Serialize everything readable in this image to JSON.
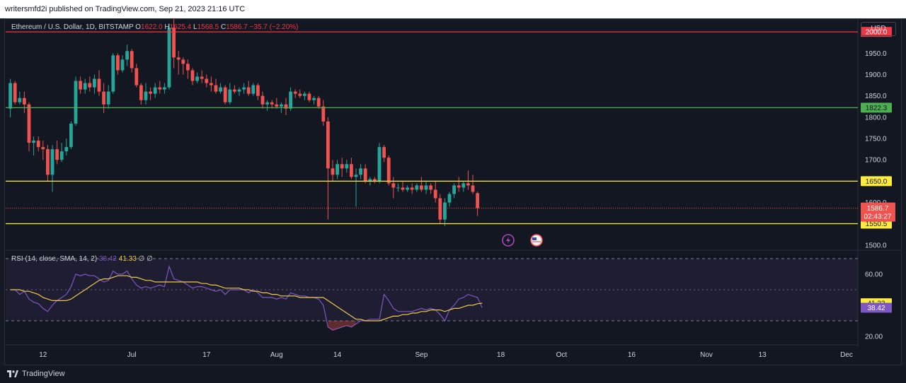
{
  "header": {
    "publisher": "writersmfd2i published on TradingView.com, Sep 21, 2023 21:16 UTC"
  },
  "footer": {
    "brand": "TradingView"
  },
  "currency_button": "USD",
  "legend": {
    "symbol": "Ethereum / U.S. Dollar, 1D, BITSTAMP",
    "o_label": "O",
    "o": "1622.0",
    "h_label": "H",
    "h": "1625.4",
    "l_label": "L",
    "l": "1568.5",
    "c_label": "C",
    "c": "1586.7",
    "change": "−35.7 (−2.20%)"
  },
  "rsi_legend": {
    "name": "RSI (14, close, SMA, 14, 2)",
    "rsi": "38.42",
    "sma": "41.33",
    "extra": "∅ ∅"
  },
  "colors": {
    "up": "#26a69a",
    "down": "#ef5350",
    "red_line": "#f23645",
    "green_line": "#4caf50",
    "yellow_line": "#ffeb3b",
    "rsi": "#7e57c2",
    "rsi_ma": "#f0c94a"
  },
  "icons": [
    "lightning-event-icon",
    "us-flag-event-icon"
  ],
  "chart_data": [
    {
      "type": "candlestick",
      "title": "Ethereum / U.S. Dollar, 1D, BITSTAMP",
      "ylim": [
        1490,
        2030
      ],
      "y_ticks": [
        1500.0,
        1550.0,
        1600.0,
        1650.0,
        1700.0,
        1750.0,
        1800.0,
        1850.0,
        1900.0,
        1950.0,
        2000.0
      ],
      "y_tick_labels": [
        "1500.0",
        "",
        "1600.0",
        "",
        "1700.0",
        "1750.0",
        "1800.0",
        "1850.0",
        "1900.0",
        "1950.0",
        ""
      ],
      "x_ticks": [
        "12",
        "Jul",
        "17",
        "Aug",
        "14",
        "Sep",
        "18",
        "Oct",
        "16",
        "Nov",
        "13",
        "Dec"
      ],
      "x_tick_dates": [
        "2023-06-12",
        "2023-07-01",
        "2023-07-17",
        "2023-08-01",
        "2023-08-14",
        "2023-09-01",
        "2023-09-18",
        "2023-10-01",
        "2023-10-16",
        "2023-11-01",
        "2023-11-13",
        "2023-12-01"
      ],
      "x_range": [
        "2023-06-04",
        "2023-12-04"
      ],
      "horizontal_lines": [
        {
          "value": 2000.0,
          "label": "2000.0",
          "color": "#f23645"
        },
        {
          "value": 1822.3,
          "label": "1822.3",
          "color": "#4caf50"
        },
        {
          "value": 1650.0,
          "label": "1650.0",
          "color": "#ffeb3b"
        },
        {
          "value": 1550.5,
          "label": "1550.5",
          "color": "#ffeb3b"
        }
      ],
      "last_price": {
        "value": 1586.7,
        "label": "1586.7",
        "countdown": "02:43:27"
      },
      "candles_start": "2023-06-05",
      "candles": [
        [
          1820,
          1890,
          1800,
          1880
        ],
        [
          1880,
          1885,
          1830,
          1835
        ],
        [
          1835,
          1860,
          1830,
          1845
        ],
        [
          1845,
          1860,
          1810,
          1830
        ],
        [
          1830,
          1835,
          1720,
          1740
        ],
        [
          1740,
          1755,
          1710,
          1745
        ],
        [
          1745,
          1755,
          1720,
          1730
        ],
        [
          1730,
          1745,
          1700,
          1725
        ],
        [
          1725,
          1735,
          1650,
          1665
        ],
        [
          1665,
          1735,
          1625,
          1725
        ],
        [
          1725,
          1745,
          1690,
          1700
        ],
        [
          1700,
          1740,
          1695,
          1720
        ],
        [
          1720,
          1750,
          1710,
          1730
        ],
        [
          1730,
          1790,
          1725,
          1785
        ],
        [
          1785,
          1895,
          1780,
          1885
        ],
        [
          1885,
          1895,
          1855,
          1865
        ],
        [
          1865,
          1890,
          1855,
          1880
        ],
        [
          1880,
          1895,
          1860,
          1870
        ],
        [
          1870,
          1900,
          1855,
          1890
        ],
        [
          1890,
          1910,
          1850,
          1860
        ],
        [
          1860,
          1880,
          1810,
          1830
        ],
        [
          1830,
          1875,
          1820,
          1860
        ],
        [
          1860,
          1950,
          1855,
          1945
        ],
        [
          1945,
          1950,
          1900,
          1910
        ],
        [
          1910,
          1945,
          1905,
          1935
        ],
        [
          1935,
          1970,
          1920,
          1955
        ],
        [
          1955,
          1960,
          1905,
          1915
        ],
        [
          1915,
          1925,
          1870,
          1875
        ],
        [
          1875,
          1880,
          1830,
          1840
        ],
        [
          1840,
          1880,
          1830,
          1860
        ],
        [
          1860,
          1870,
          1840,
          1855
        ],
        [
          1855,
          1880,
          1845,
          1870
        ],
        [
          1870,
          1885,
          1855,
          1865
        ],
        [
          1865,
          1880,
          1855,
          1870
        ],
        [
          1870,
          2020,
          1865,
          2010
        ],
        [
          2010,
          2030,
          1915,
          1940
        ],
        [
          1940,
          1955,
          1900,
          1935
        ],
        [
          1935,
          1940,
          1900,
          1925
        ],
        [
          1925,
          1935,
          1890,
          1910
        ],
        [
          1910,
          1915,
          1875,
          1885
        ],
        [
          1885,
          1905,
          1880,
          1895
        ],
        [
          1895,
          1910,
          1880,
          1890
        ],
        [
          1890,
          1900,
          1870,
          1880
        ],
        [
          1880,
          1895,
          1860,
          1875
        ],
        [
          1875,
          1890,
          1855,
          1860
        ],
        [
          1860,
          1880,
          1855,
          1870
        ],
        [
          1870,
          1875,
          1830,
          1835
        ],
        [
          1835,
          1880,
          1830,
          1865
        ],
        [
          1865,
          1875,
          1855,
          1860
        ],
        [
          1860,
          1870,
          1850,
          1865
        ],
        [
          1865,
          1880,
          1855,
          1870
        ],
        [
          1870,
          1885,
          1850,
          1855
        ],
        [
          1855,
          1880,
          1850,
          1875
        ],
        [
          1875,
          1880,
          1840,
          1850
        ],
        [
          1850,
          1860,
          1820,
          1830
        ],
        [
          1830,
          1840,
          1815,
          1835
        ],
        [
          1835,
          1840,
          1820,
          1830
        ],
        [
          1830,
          1845,
          1820,
          1825
        ],
        [
          1825,
          1835,
          1810,
          1830
        ],
        [
          1830,
          1845,
          1805,
          1820
        ],
        [
          1820,
          1870,
          1815,
          1860
        ],
        [
          1860,
          1865,
          1845,
          1855
        ],
        [
          1855,
          1865,
          1845,
          1850
        ],
        [
          1850,
          1860,
          1840,
          1855
        ],
        [
          1855,
          1860,
          1835,
          1840
        ],
        [
          1840,
          1850,
          1830,
          1845
        ],
        [
          1845,
          1850,
          1820,
          1825
        ],
        [
          1825,
          1840,
          1780,
          1790
        ],
        [
          1790,
          1800,
          1560,
          1680
        ],
        [
          1680,
          1700,
          1650,
          1665
        ],
        [
          1665,
          1700,
          1655,
          1690
        ],
        [
          1690,
          1705,
          1660,
          1680
        ],
        [
          1680,
          1700,
          1670,
          1690
        ],
        [
          1690,
          1705,
          1655,
          1660
        ],
        [
          1660,
          1680,
          1590,
          1665
        ],
        [
          1665,
          1690,
          1655,
          1680
        ],
        [
          1680,
          1690,
          1645,
          1650
        ],
        [
          1650,
          1660,
          1640,
          1655
        ],
        [
          1655,
          1660,
          1645,
          1650
        ],
        [
          1650,
          1740,
          1645,
          1730
        ],
        [
          1730,
          1735,
          1695,
          1705
        ],
        [
          1705,
          1710,
          1640,
          1645
        ],
        [
          1645,
          1660,
          1610,
          1635
        ],
        [
          1635,
          1645,
          1625,
          1635
        ],
        [
          1635,
          1650,
          1625,
          1630
        ],
        [
          1630,
          1640,
          1625,
          1635
        ],
        [
          1635,
          1645,
          1620,
          1630
        ],
        [
          1630,
          1645,
          1625,
          1640
        ],
        [
          1640,
          1660,
          1625,
          1630
        ],
        [
          1630,
          1650,
          1620,
          1640
        ],
        [
          1640,
          1645,
          1620,
          1630
        ],
        [
          1630,
          1650,
          1600,
          1610
        ],
        [
          1610,
          1620,
          1550,
          1560
        ],
        [
          1560,
          1610,
          1545,
          1600
        ],
        [
          1600,
          1625,
          1590,
          1620
        ],
        [
          1620,
          1645,
          1610,
          1640
        ],
        [
          1640,
          1660,
          1625,
          1635
        ],
        [
          1635,
          1650,
          1625,
          1645
        ],
        [
          1645,
          1675,
          1630,
          1640
        ],
        [
          1640,
          1665,
          1620,
          1625
        ],
        [
          1622.0,
          1625.4,
          1568.5,
          1586.7
        ]
      ]
    },
    {
      "type": "line",
      "title": "RSI (14, close, SMA, 14, 2)",
      "ylim": [
        15,
        75
      ],
      "y_ticks": [
        20.0,
        30.0,
        50.0,
        60.0,
        70.0
      ],
      "y_tick_labels": [
        "20.00",
        "",
        "",
        "60.00",
        ""
      ],
      "band": [
        30,
        70
      ],
      "series": [
        {
          "name": "RSI",
          "color": "#7e57c2",
          "last": 38.42,
          "values": [
            50,
            50,
            47,
            49,
            44,
            42,
            41,
            38,
            36,
            40,
            43,
            45,
            47,
            52,
            60,
            59,
            60,
            59,
            59,
            57,
            55,
            56,
            62,
            60,
            60,
            62,
            57,
            53,
            51,
            52,
            51,
            52,
            53,
            52,
            65,
            57,
            56,
            55,
            53,
            51,
            52,
            52,
            51,
            50,
            49,
            50,
            47,
            50,
            50,
            50,
            50,
            48,
            50,
            48,
            45,
            45,
            45,
            44,
            45,
            44,
            48,
            47,
            46,
            46,
            45,
            45,
            44,
            40,
            26,
            24,
            25,
            26,
            27,
            26,
            28,
            30,
            30,
            31,
            31,
            31,
            47,
            43,
            38,
            36,
            36,
            36,
            36,
            37,
            38,
            37,
            38,
            37,
            34,
            30,
            37,
            40,
            44,
            45,
            47,
            46,
            45,
            38.42
          ]
        },
        {
          "name": "SMA",
          "color": "#f0c94a",
          "last": 41.33,
          "values": [
            50,
            50,
            50,
            49,
            49,
            48,
            47,
            45,
            44,
            43,
            43,
            43,
            43,
            44,
            46,
            48,
            50,
            52,
            54,
            56,
            57,
            57,
            58,
            59,
            59,
            59,
            58,
            58,
            57,
            56,
            56,
            55,
            55,
            55,
            55,
            55,
            55,
            55,
            55,
            55,
            55,
            54,
            54,
            53,
            53,
            52,
            51,
            51,
            51,
            51,
            50,
            50,
            49,
            49,
            48,
            48,
            47,
            47,
            46,
            46,
            46,
            46,
            45,
            45,
            45,
            45,
            45,
            45,
            43,
            41,
            39,
            37,
            35,
            33,
            31,
            31,
            30,
            30,
            30,
            30,
            31,
            32,
            33,
            33,
            34,
            34,
            35,
            35,
            36,
            36,
            37,
            37,
            37,
            36,
            37,
            38,
            38,
            39,
            40,
            40,
            41,
            41.33
          ]
        }
      ]
    }
  ]
}
